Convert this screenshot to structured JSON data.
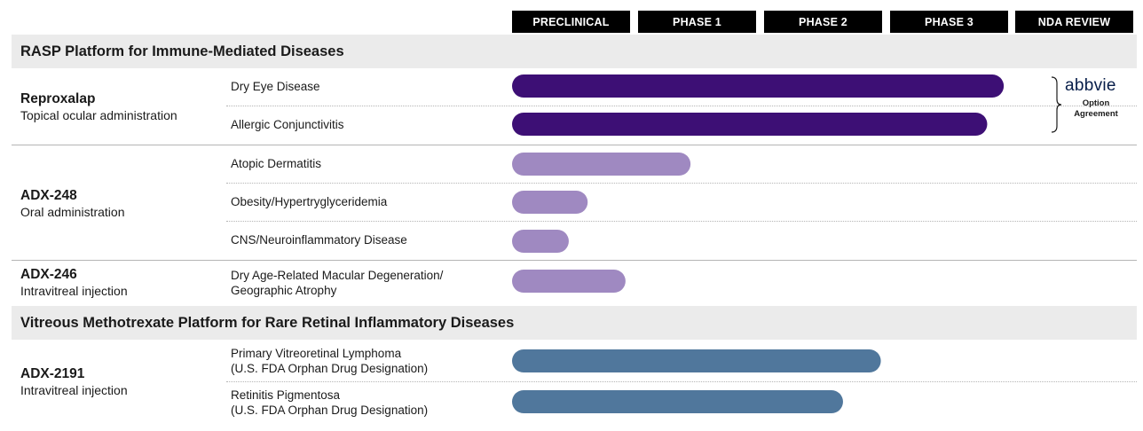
{
  "chart_data": {
    "type": "bar",
    "orientation": "horizontal",
    "phases": [
      "PRECLINICAL",
      "PHASE 1",
      "PHASE 2",
      "PHASE 3",
      "NDA REVIEW"
    ],
    "colors": {
      "reproxalap": "#3d0f75",
      "adx248_adx246": "#9f89c1",
      "adx2191": "#50779c",
      "band": "#ebebeb",
      "phase_header": "#000000"
    },
    "sections": [
      {
        "title": "RASP Platform for Immune-Mediated Diseases",
        "programs": [
          {
            "name": "Reproxalap",
            "route": "Topical ocular administration",
            "partner": {
              "logo_text": "abbvie",
              "note_line1": "Option",
              "note_line2": "Agreement"
            },
            "indications": [
              {
                "label_lines": [
                  "Dry Eye Disease"
                ],
                "progress_phases": 4.16,
                "color_key": "reproxalap"
              },
              {
                "label_lines": [
                  "Allergic Conjunctivitis"
                ],
                "progress_phases": 4.02,
                "color_key": "reproxalap"
              }
            ]
          },
          {
            "name": "ADX-248",
            "route": "Oral administration",
            "indications": [
              {
                "label_lines": [
                  "Atopic Dermatitis"
                ],
                "progress_phases": 1.51,
                "color_key": "adx248_adx246"
              },
              {
                "label_lines": [
                  "Obesity/Hypertryglyceridemia"
                ],
                "progress_phases": 0.64,
                "color_key": "adx248_adx246"
              },
              {
                "label_lines": [
                  "CNS/Neuroinflammatory Disease"
                ],
                "progress_phases": 0.48,
                "color_key": "adx248_adx246"
              }
            ]
          },
          {
            "name": "ADX-246",
            "route": "Intravitreal injection",
            "indications": [
              {
                "label_lines": [
                  "Dry Age-Related Macular Degeneration/",
                  "Geographic Atrophy"
                ],
                "progress_phases": 0.96,
                "color_key": "adx248_adx246"
              }
            ]
          }
        ]
      },
      {
        "title": "Vitreous Methotrexate Platform for Rare Retinal Inflammatory Diseases",
        "programs": [
          {
            "name": "ADX-2191",
            "route": "Intravitreal injection",
            "indications": [
              {
                "label_lines": [
                  "Primary Vitreoretinal Lymphoma",
                  "(U.S. FDA Orphan Drug Designation)"
                ],
                "progress_phases": 3.12,
                "color_key": "adx2191"
              },
              {
                "label_lines": [
                  "Retinitis Pigmentosa",
                  "(U.S. FDA Orphan Drug Designation)"
                ],
                "progress_phases": 2.8,
                "color_key": "adx2191"
              }
            ]
          }
        ]
      }
    ]
  }
}
